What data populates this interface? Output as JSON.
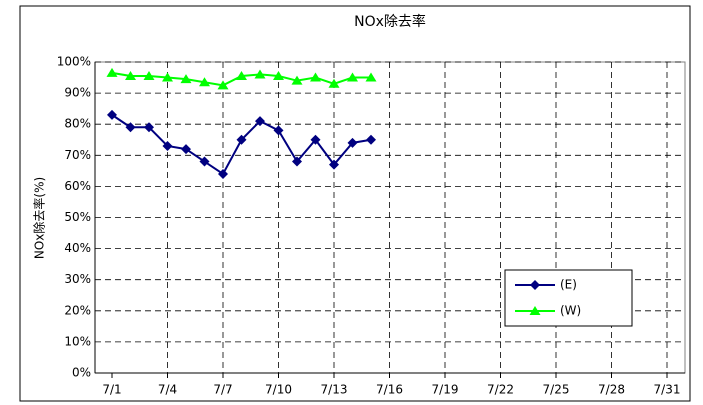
{
  "chart_data": {
    "type": "line",
    "title": "NOx除去率",
    "y_label": "NOx除去率(%)",
    "categories": [
      "7/1",
      null,
      null,
      "7/4",
      null,
      null,
      "7/7",
      null,
      null,
      "7/10",
      null,
      null,
      "7/13",
      null,
      null,
      "7/16",
      null,
      null,
      "7/19",
      null,
      null,
      "7/22",
      null,
      null,
      "7/25",
      null,
      null,
      "7/28",
      null,
      null,
      "7/31"
    ],
    "series": [
      {
        "name": "(E)",
        "color": "#000080",
        "marker": "diamond",
        "values": [
          83,
          79,
          79,
          73,
          72,
          68,
          64,
          75,
          81,
          78,
          68,
          75,
          67,
          74,
          75,
          null,
          null,
          null,
          null,
          null,
          null,
          null,
          null,
          null,
          null,
          null,
          null,
          null,
          null,
          null,
          null
        ]
      },
      {
        "name": "(W)",
        "color": "#00ff00",
        "marker": "triangle",
        "values": [
          96.5,
          95.5,
          95.5,
          95,
          94.5,
          93.5,
          92.5,
          95.5,
          96,
          95.5,
          94,
          95,
          93,
          95,
          95,
          null,
          null,
          null,
          null,
          null,
          null,
          null,
          null,
          null,
          null,
          null,
          null,
          null,
          null,
          null,
          null
        ]
      }
    ],
    "ylim": [
      0,
      100
    ],
    "yticks": [
      {
        "value": 0,
        "label": "0%"
      },
      {
        "value": 10,
        "label": "10%"
      },
      {
        "value": 20,
        "label": "20%"
      },
      {
        "value": 30,
        "label": "30%"
      },
      {
        "value": 40,
        "label": "40%"
      },
      {
        "value": 50,
        "label": "50%"
      },
      {
        "value": 60,
        "label": "60%"
      },
      {
        "value": 70,
        "label": "70%"
      },
      {
        "value": 80,
        "label": "80%"
      },
      {
        "value": 90,
        "label": "90%"
      },
      {
        "value": 100,
        "label": "100%"
      }
    ],
    "grid": true,
    "legend": "lower right"
  }
}
